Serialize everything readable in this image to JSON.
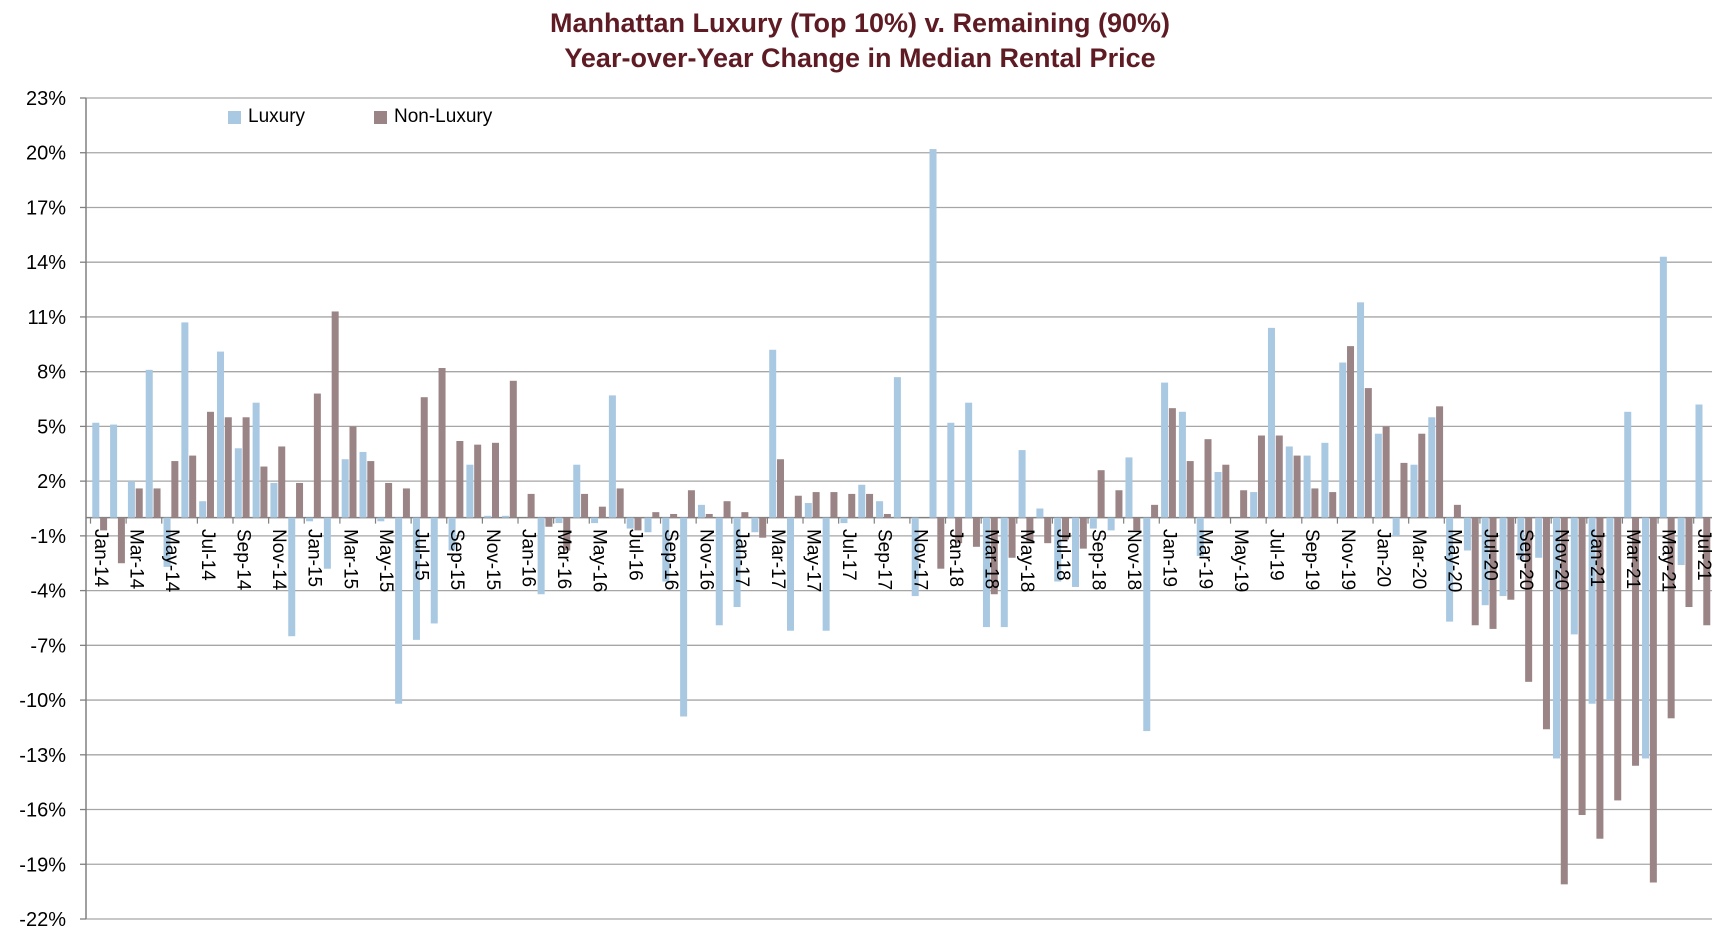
{
  "title": {
    "line1": "Manhattan Luxury (Top 10%) v. Remaining (90%)",
    "line2": "Year-over-Year Change in Median Rental Price",
    "color": "#5e1b23"
  },
  "legend": [
    {
      "label": "Luxury",
      "color": "#a9c8e1"
    },
    {
      "label": "Non-Luxury",
      "color": "#9b8486"
    }
  ],
  "axis_style": {
    "gridline_color": "#a6a6a6",
    "axis_line_color": "#808080",
    "tick_label_color": "#000000"
  },
  "chart_data": {
    "type": "bar",
    "title": "Manhattan Luxury (Top 10%) v. Remaining (90%) Year-over-Year Change in Median Rental Price",
    "xlabel": "",
    "ylabel": "",
    "ylim": [
      -22,
      23
    ],
    "ytick_step": 3,
    "y_ticks": [
      "23%",
      "20%",
      "17%",
      "14%",
      "11%",
      "8%",
      "5%",
      "2%",
      "-1%",
      "-4%",
      "-7%",
      "-10%",
      "-13%",
      "-16%",
      "-19%",
      "-22%"
    ],
    "y_tick_values": [
      23,
      20,
      17,
      14,
      11,
      8,
      5,
      2,
      -1,
      -4,
      -7,
      -10,
      -13,
      -16,
      -19,
      -22
    ],
    "grid": true,
    "legend_position": "top-left-inside",
    "xtick_every": 2,
    "categories": [
      "Jan-14",
      "Feb-14",
      "Mar-14",
      "Apr-14",
      "May-14",
      "Jun-14",
      "Jul-14",
      "Aug-14",
      "Sep-14",
      "Oct-14",
      "Nov-14",
      "Dec-14",
      "Jan-15",
      "Feb-15",
      "Mar-15",
      "Apr-15",
      "May-15",
      "Jun-15",
      "Jul-15",
      "Aug-15",
      "Sep-15",
      "Oct-15",
      "Nov-15",
      "Dec-15",
      "Jan-16",
      "Feb-16",
      "Mar-16",
      "Apr-16",
      "May-16",
      "Jun-16",
      "Jul-16",
      "Aug-16",
      "Sep-16",
      "Oct-16",
      "Nov-16",
      "Dec-16",
      "Jan-17",
      "Feb-17",
      "Mar-17",
      "Apr-17",
      "May-17",
      "Jun-17",
      "Jul-17",
      "Aug-17",
      "Sep-17",
      "Oct-17",
      "Nov-17",
      "Dec-17",
      "Jan-18",
      "Feb-18",
      "Mar-18",
      "Apr-18",
      "May-18",
      "Jun-18",
      "Jul-18",
      "Aug-18",
      "Sep-18",
      "Oct-18",
      "Nov-18",
      "Dec-18",
      "Jan-19",
      "Feb-19",
      "Mar-19",
      "Apr-19",
      "May-19",
      "Jun-19",
      "Jul-19",
      "Aug-19",
      "Sep-19",
      "Oct-19",
      "Nov-19",
      "Dec-19",
      "Jan-20",
      "Feb-20",
      "Mar-20",
      "Apr-20",
      "May-20",
      "Jun-20",
      "Jul-20",
      "Aug-20",
      "Sep-20",
      "Oct-20",
      "Nov-20",
      "Dec-20",
      "Jan-21",
      "Feb-21",
      "Mar-21",
      "Apr-21",
      "May-21",
      "Jun-21",
      "Jul-21"
    ],
    "series": [
      {
        "name": "Luxury",
        "color": "#a9c8e1",
        "values": [
          5.2,
          5.1,
          2.0,
          8.1,
          -2.7,
          10.7,
          0.9,
          9.1,
          3.8,
          6.3,
          1.9,
          -6.5,
          -0.2,
          -2.8,
          3.2,
          3.6,
          -0.2,
          -10.2,
          -6.7,
          -5.8,
          -1.8,
          2.9,
          0.1,
          0.1,
          0.0,
          -4.2,
          -0.3,
          2.9,
          -0.3,
          6.7,
          -0.6,
          -0.8,
          -3.5,
          -10.9,
          0.7,
          -5.9,
          -4.9,
          -0.8,
          9.2,
          -6.2,
          0.8,
          -6.2,
          -0.3,
          1.8,
          0.9,
          7.7,
          -4.3,
          20.2,
          5.2,
          6.3,
          -6.0,
          -6.0,
          3.7,
          0.5,
          -3.5,
          -3.8,
          -0.6,
          -0.7,
          3.3,
          -11.7,
          7.4,
          5.8,
          -2.1,
          2.5,
          0.0,
          1.4,
          10.4,
          3.9,
          3.4,
          4.1,
          8.5,
          11.8,
          4.6,
          -1.0,
          2.9,
          5.5,
          -5.7,
          -1.8,
          -4.8,
          -4.3,
          -2.3,
          -2.2,
          -13.2,
          -6.4,
          -10.2,
          -10.0,
          5.8,
          -13.2,
          14.3,
          -2.6,
          6.2
        ]
      },
      {
        "name": "Non-Luxury",
        "color": "#9b8486",
        "values": [
          -0.7,
          -2.5,
          1.6,
          1.6,
          3.1,
          3.4,
          5.8,
          5.5,
          5.5,
          2.8,
          3.9,
          1.9,
          6.8,
          11.3,
          5.0,
          3.1,
          1.9,
          1.6,
          6.6,
          8.2,
          4.2,
          4.0,
          4.1,
          7.5,
          1.3,
          -0.5,
          -1.8,
          1.3,
          0.6,
          1.6,
          -0.7,
          0.3,
          0.2,
          1.5,
          0.2,
          0.9,
          0.3,
          -1.1,
          3.2,
          1.2,
          1.4,
          1.4,
          1.3,
          1.3,
          0.2,
          0.0,
          0.0,
          -2.8,
          -1.4,
          -1.6,
          -4.2,
          -2.2,
          -1.3,
          -1.4,
          -1.2,
          -1.7,
          2.6,
          1.5,
          -0.7,
          0.7,
          6.0,
          3.1,
          4.3,
          2.9,
          1.5,
          4.5,
          4.5,
          3.4,
          1.6,
          1.4,
          9.4,
          7.1,
          5.0,
          3.0,
          4.6,
          6.1,
          0.7,
          -5.9,
          -6.1,
          -4.5,
          -9.0,
          -11.6,
          -20.1,
          -16.3,
          -17.6,
          -15.5,
          -13.6,
          -20.0,
          -11.0,
          -4.9,
          -5.9
        ]
      }
    ]
  }
}
